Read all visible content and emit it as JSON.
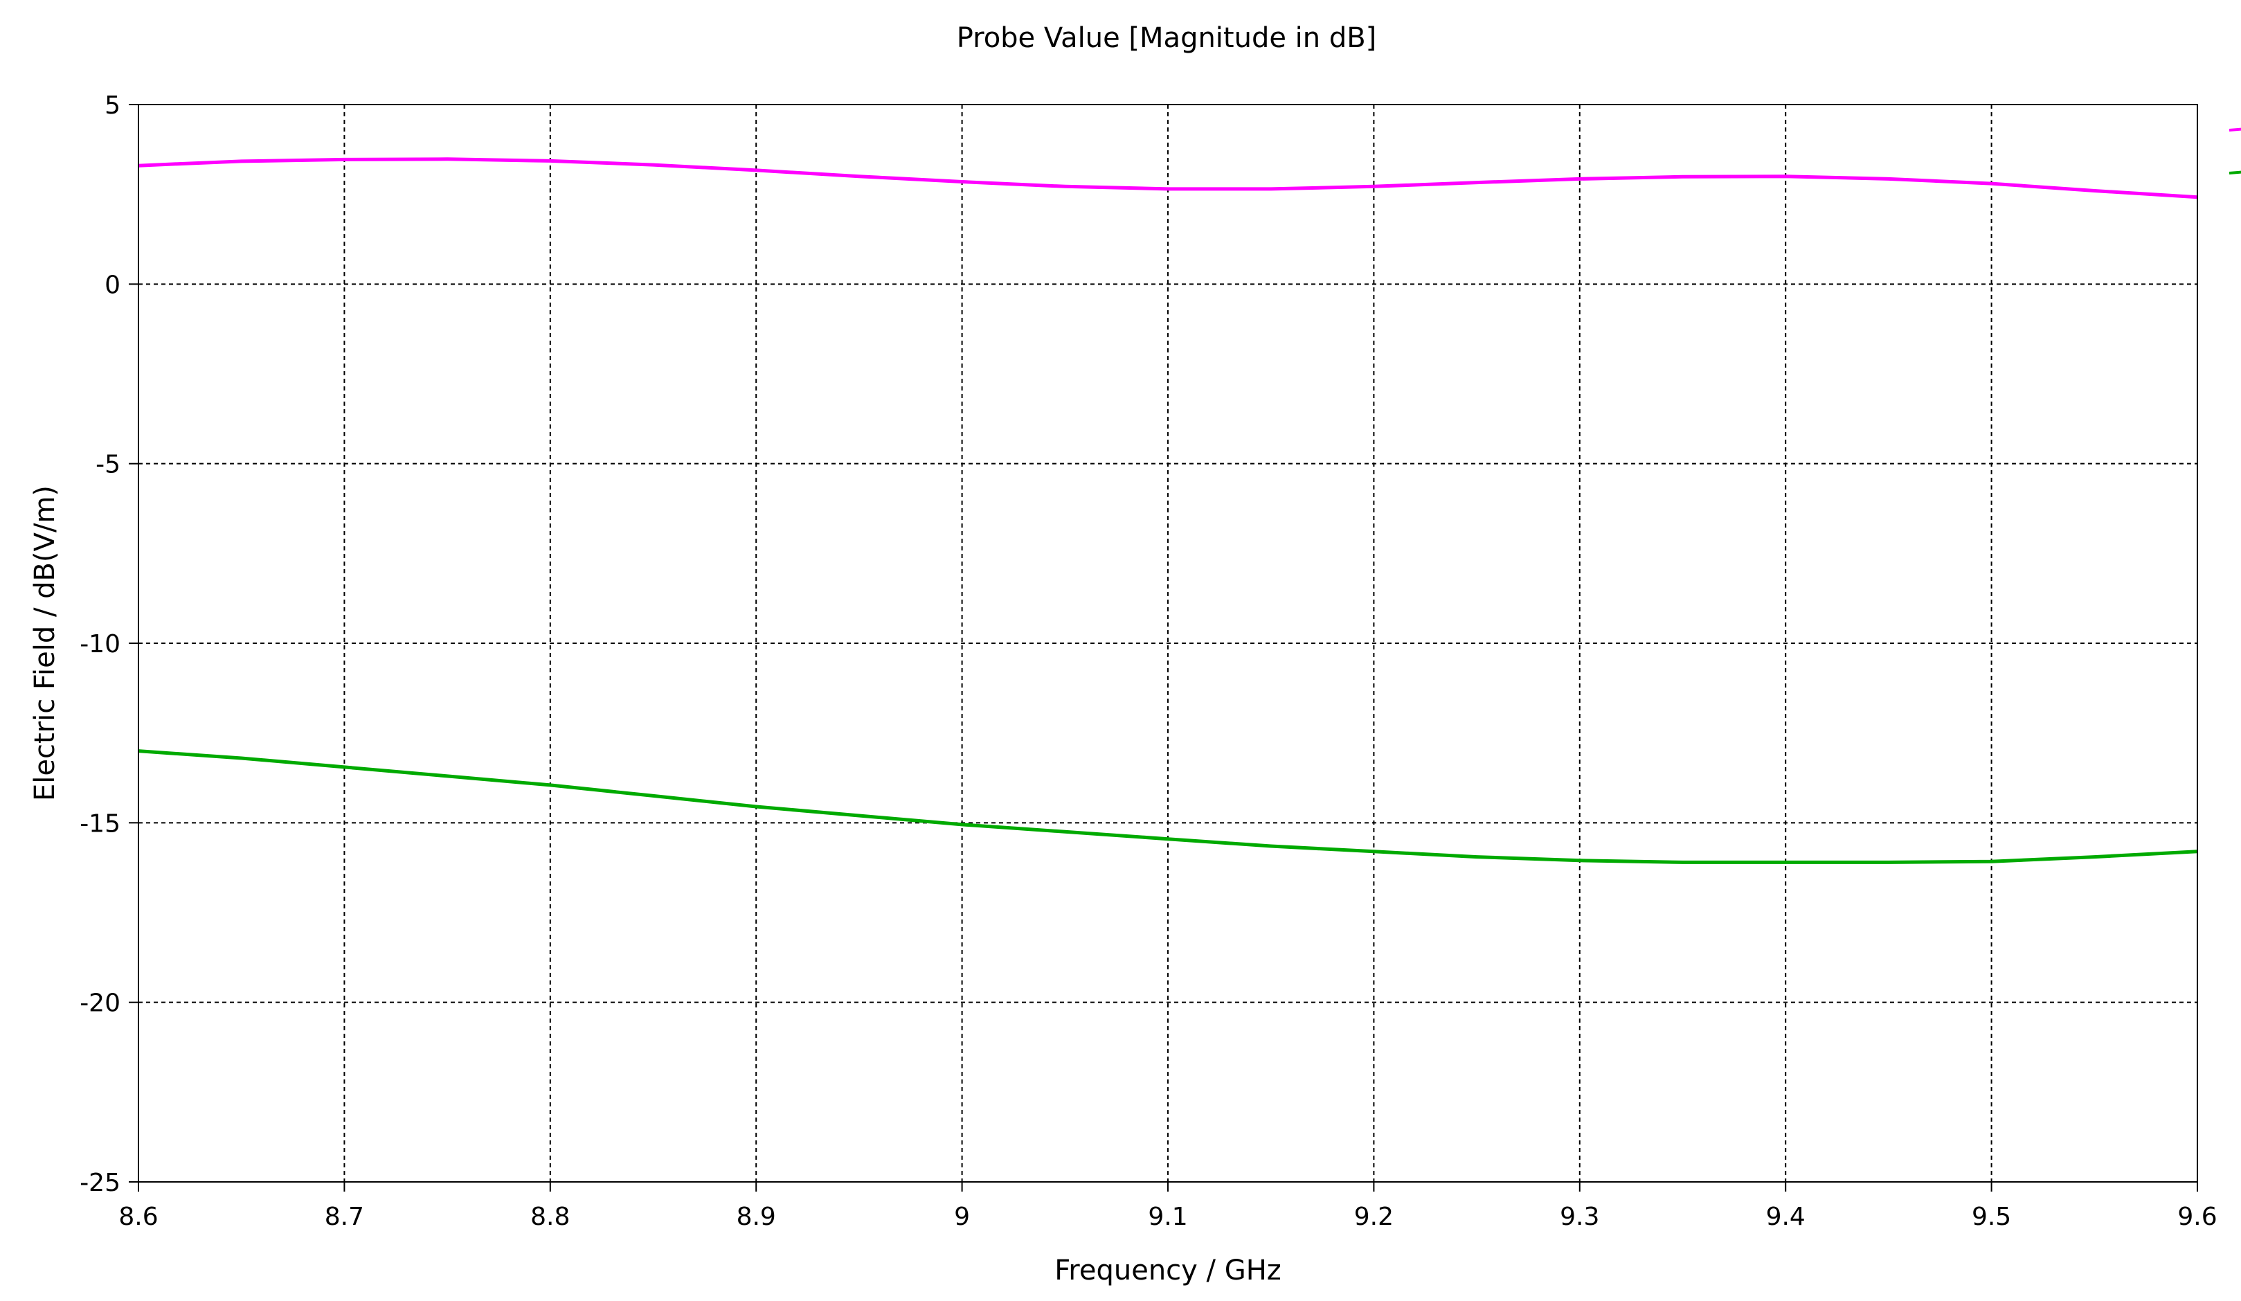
{
  "chart_data": {
    "type": "line",
    "title": "Probe Value [Magnitude in dB]",
    "xlabel": "Frequency / GHz",
    "ylabel": "Electric Field / dB(V/m)",
    "xlim": [
      8.6,
      9.6
    ],
    "ylim": [
      -25,
      5
    ],
    "xticks": [
      "8.6",
      "8.7",
      "8.8",
      "8.9",
      "9",
      "9.1",
      "9.2",
      "9.3",
      "9.4",
      "9.5",
      "9.6"
    ],
    "yticks": [
      "5",
      "0",
      "-5",
      "-10",
      "-15",
      "-20",
      "-25"
    ],
    "grid": true,
    "legend_position": "right",
    "series": [
      {
        "color": "#ff00ff",
        "x": [
          8.6,
          8.62,
          8.65,
          8.7,
          8.75,
          8.8,
          8.85,
          8.9,
          8.95,
          9.0,
          9.05,
          9.1,
          9.15,
          9.2,
          9.25,
          9.3,
          9.35,
          9.4,
          9.45,
          9.5,
          9.55,
          9.6
        ],
        "y": [
          3.3,
          3.35,
          3.42,
          3.47,
          3.48,
          3.43,
          3.32,
          3.17,
          3.0,
          2.85,
          2.72,
          2.65,
          2.65,
          2.72,
          2.83,
          2.93,
          2.99,
          3.0,
          2.93,
          2.8,
          2.6,
          2.42
        ]
      },
      {
        "color": "#00aa00",
        "x": [
          8.6,
          8.65,
          8.7,
          8.75,
          8.8,
          8.85,
          8.9,
          8.95,
          9.0,
          9.05,
          9.1,
          9.15,
          9.2,
          9.25,
          9.3,
          9.35,
          9.4,
          9.45,
          9.5,
          9.55,
          9.6
        ],
        "y": [
          -13.0,
          -13.2,
          -13.45,
          -13.7,
          -13.95,
          -14.25,
          -14.55,
          -14.8,
          -15.05,
          -15.25,
          -15.45,
          -15.65,
          -15.8,
          -15.95,
          -16.05,
          -16.1,
          -16.1,
          -16.1,
          -16.08,
          -15.95,
          -15.8
        ]
      }
    ]
  }
}
